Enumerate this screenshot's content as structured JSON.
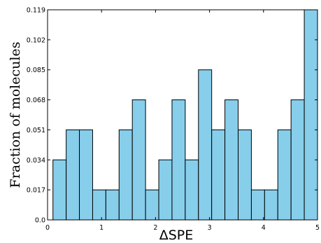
{
  "chart_data": {
    "type": "bar",
    "title": "",
    "xlabel": "ΔSPE",
    "ylabel": "Fraction of molecules",
    "xlim": [
      0,
      5
    ],
    "ylim": [
      0,
      0.119
    ],
    "x_ticks": [
      "0",
      "1",
      "2",
      "3",
      "4",
      "5"
    ],
    "y_ticks": [
      "0.0",
      "0.017",
      "0.034",
      "0.051",
      "0.068",
      "0.085",
      "0.102",
      "0.119"
    ],
    "bin_edges": [
      0.1,
      0.345,
      0.59,
      0.835,
      1.08,
      1.325,
      1.57,
      1.815,
      2.06,
      2.305,
      2.55,
      2.795,
      3.04,
      3.285,
      3.53,
      3.775,
      4.02,
      4.265,
      4.51,
      4.755,
      5.0
    ],
    "values": [
      0.034,
      0.051,
      0.051,
      0.017,
      0.017,
      0.051,
      0.068,
      0.017,
      0.034,
      0.068,
      0.034,
      0.085,
      0.051,
      0.068,
      0.051,
      0.017,
      0.017,
      0.051,
      0.068,
      0.119
    ],
    "bar_color": "#87ceeb",
    "grid": false
  }
}
